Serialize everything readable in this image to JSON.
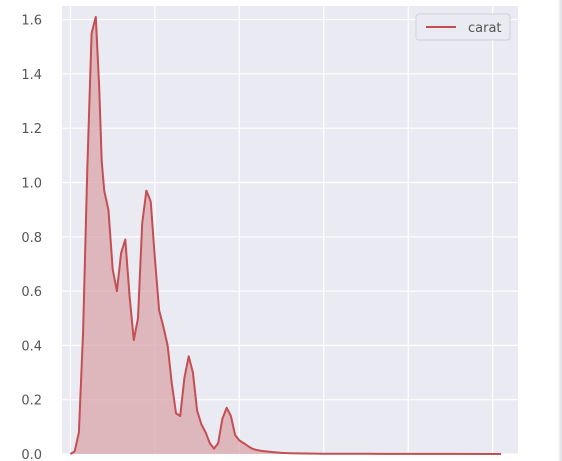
{
  "chart_data": {
    "type": "area",
    "title": "",
    "xlabel": "",
    "ylabel": "",
    "ylim": [
      0,
      1.65
    ],
    "xlim": [
      -0.1,
      5.3
    ],
    "yticks": [
      0.0,
      0.2,
      0.4,
      0.6,
      0.8,
      1.0,
      1.2,
      1.4,
      1.6
    ],
    "ytick_labels": [
      "0.0",
      "0.2",
      "0.4",
      "0.6",
      "0.8",
      "1.0",
      "1.2",
      "1.4",
      "1.6"
    ],
    "x_gridlines": [
      0,
      1,
      2,
      3,
      4,
      5
    ],
    "grid": true,
    "legend_position": "top-right",
    "series": [
      {
        "name": "carat",
        "color": "#c44e52",
        "fill_color": "#d9a6ab",
        "x": [
          0.0,
          0.05,
          0.1,
          0.15,
          0.2,
          0.25,
          0.3,
          0.34,
          0.37,
          0.4,
          0.45,
          0.5,
          0.55,
          0.6,
          0.65,
          0.7,
          0.75,
          0.8,
          0.85,
          0.9,
          0.95,
          1.0,
          1.05,
          1.1,
          1.15,
          1.2,
          1.25,
          1.3,
          1.35,
          1.4,
          1.45,
          1.5,
          1.55,
          1.6,
          1.65,
          1.7,
          1.75,
          1.8,
          1.85,
          1.9,
          1.95,
          2.0,
          2.05,
          2.1,
          2.15,
          2.2,
          2.25,
          2.3,
          2.4,
          2.5,
          2.6,
          2.8,
          3.0,
          3.5,
          4.0,
          4.5,
          5.0,
          5.1
        ],
        "y": [
          0.0,
          0.01,
          0.08,
          0.45,
          1.05,
          1.55,
          1.61,
          1.35,
          1.08,
          0.97,
          0.9,
          0.68,
          0.6,
          0.74,
          0.79,
          0.58,
          0.42,
          0.5,
          0.85,
          0.97,
          0.93,
          0.72,
          0.53,
          0.47,
          0.4,
          0.26,
          0.15,
          0.14,
          0.28,
          0.36,
          0.3,
          0.16,
          0.11,
          0.08,
          0.04,
          0.02,
          0.04,
          0.13,
          0.17,
          0.14,
          0.07,
          0.05,
          0.04,
          0.03,
          0.02,
          0.015,
          0.012,
          0.01,
          0.007,
          0.004,
          0.003,
          0.002,
          0.001,
          0.0008,
          0.0005,
          0.0003,
          0.0001,
          0.0
        ]
      }
    ]
  }
}
